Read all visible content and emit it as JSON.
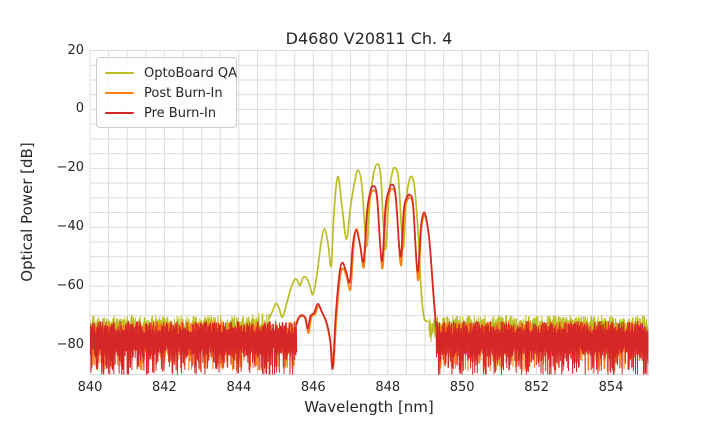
{
  "chart_data": {
    "type": "line",
    "title": "D4680 V20811 Ch. 4",
    "xlabel": "Wavelength [nm]",
    "ylabel": "Optical Power [dB]",
    "xlim": [
      840,
      855
    ],
    "ylim": [
      -90,
      20
    ],
    "xticks": {
      "values": [
        840,
        842,
        844,
        846,
        848,
        850,
        852,
        854
      ],
      "labels": [
        "840",
        "842",
        "844",
        "846",
        "848",
        "850",
        "852",
        "854"
      ]
    },
    "yticks": {
      "values": [
        20,
        0,
        -20,
        -40,
        -60,
        -80
      ],
      "labels": [
        "20",
        "0",
        "−20",
        "−40",
        "−60",
        "−80"
      ]
    },
    "grid": {
      "show": true,
      "x_step": 0.5,
      "y_step": 5,
      "color": "#dcdcdc"
    },
    "legend": {
      "position": "upper left"
    },
    "series": [
      {
        "name": "OptoBoard QA",
        "color": "#bcbd22",
        "noise_floor_dB": -74,
        "noise_segments": [
          {
            "x0": 840.0,
            "x1": 844.82,
            "hi": -72.0,
            "hiJit": 2.2,
            "lo": -76.5,
            "loJit": 3.5,
            "deepProb": 0.25,
            "ramp": [
              844.2,
              2.0
            ]
          },
          {
            "x0": 849.1,
            "x1": 855.0,
            "hi": -72.0,
            "hiJit": 2.2,
            "lo": -76.5,
            "loJit": 3.5,
            "deepProb": 0.25,
            "ramp": null
          }
        ],
        "envelope": [
          [
            844.82,
            -71
          ],
          [
            844.92,
            -68
          ],
          [
            845.0,
            -65.8
          ],
          [
            845.08,
            -67.5
          ],
          [
            845.17,
            -70.5
          ],
          [
            845.28,
            -66
          ],
          [
            845.38,
            -61.5
          ],
          [
            845.48,
            -58
          ],
          [
            845.56,
            -57.8
          ],
          [
            845.64,
            -59.8
          ],
          [
            845.72,
            -57.2
          ],
          [
            845.8,
            -57
          ],
          [
            845.9,
            -59.5
          ],
          [
            845.99,
            -62.8
          ],
          [
            846.1,
            -56
          ],
          [
            846.2,
            -46
          ],
          [
            846.3,
            -40.5
          ],
          [
            846.4,
            -46
          ],
          [
            846.48,
            -53
          ],
          [
            846.56,
            -34
          ],
          [
            846.66,
            -22.8
          ],
          [
            846.77,
            -33
          ],
          [
            846.89,
            -44
          ],
          [
            846.99,
            -34
          ],
          [
            847.09,
            -26
          ],
          [
            847.2,
            -20.6
          ],
          [
            847.31,
            -26.5
          ],
          [
            847.43,
            -46.5
          ],
          [
            847.53,
            -29.5
          ],
          [
            847.62,
            -22
          ],
          [
            847.71,
            -18.6
          ],
          [
            847.81,
            -22.5
          ],
          [
            847.93,
            -47.5
          ],
          [
            848.03,
            -29.5
          ],
          [
            848.11,
            -22
          ],
          [
            848.19,
            -19.8
          ],
          [
            848.29,
            -24
          ],
          [
            848.41,
            -47
          ],
          [
            848.49,
            -31.5
          ],
          [
            848.57,
            -24.5
          ],
          [
            848.64,
            -22.8
          ],
          [
            848.72,
            -26.5
          ],
          [
            848.82,
            -43
          ],
          [
            848.9,
            -62
          ],
          [
            848.97,
            -70.5
          ],
          [
            849.04,
            -71.8
          ],
          [
            849.1,
            -72
          ]
        ]
      },
      {
        "name": "Post Burn-In",
        "color": "#ff7f0e",
        "noise_floor_dB": -76,
        "noise_segments": [
          {
            "x0": 840.0,
            "x1": 845.5,
            "hi": -74.5,
            "hiJit": 2.5,
            "lo": -81.0,
            "loJit": 8.0,
            "deepProb": 0.5,
            "ramp": null
          },
          {
            "x0": 849.32,
            "x1": 855.0,
            "hi": -74.5,
            "hiJit": 2.5,
            "lo": -81.0,
            "loJit": 8.0,
            "deepProb": 0.5,
            "ramp": null
          }
        ],
        "envelope": [
          [
            845.5,
            -73.5
          ],
          [
            845.6,
            -70.8
          ],
          [
            845.7,
            -70.2
          ],
          [
            845.8,
            -71
          ],
          [
            845.87,
            -76
          ],
          [
            845.95,
            -70.5
          ],
          [
            846.05,
            -69.5
          ],
          [
            846.14,
            -66.5
          ],
          [
            846.24,
            -69
          ],
          [
            846.36,
            -73
          ],
          [
            846.47,
            -80
          ],
          [
            846.54,
            -87
          ],
          [
            846.62,
            -71
          ],
          [
            846.72,
            -57
          ],
          [
            846.8,
            -54
          ],
          [
            846.9,
            -57
          ],
          [
            847.0,
            -61
          ],
          [
            847.08,
            -47
          ],
          [
            847.16,
            -40.5
          ],
          [
            847.26,
            -46.5
          ],
          [
            847.36,
            -53.5
          ],
          [
            847.45,
            -36
          ],
          [
            847.53,
            -29.5
          ],
          [
            847.62,
            -27.5
          ],
          [
            847.72,
            -31
          ],
          [
            847.85,
            -54
          ],
          [
            847.95,
            -34.5
          ],
          [
            848.04,
            -28.5
          ],
          [
            848.12,
            -27
          ],
          [
            848.22,
            -30.5
          ],
          [
            848.35,
            -53
          ],
          [
            848.44,
            -35.5
          ],
          [
            848.52,
            -31
          ],
          [
            848.6,
            -30
          ],
          [
            848.69,
            -34
          ],
          [
            848.81,
            -58
          ],
          [
            848.9,
            -41
          ],
          [
            848.98,
            -36
          ],
          [
            849.06,
            -39
          ],
          [
            849.14,
            -47.5
          ],
          [
            849.24,
            -64
          ],
          [
            849.32,
            -76
          ]
        ]
      },
      {
        "name": "Pre Burn-In",
        "color": "#d62728",
        "noise_floor_dB": -76,
        "noise_segments": [
          {
            "x0": 840.0,
            "x1": 845.55,
            "hi": -74.0,
            "hiJit": 2.2,
            "lo": -82.0,
            "loJit": 9.0,
            "deepProb": 0.6,
            "ramp": null
          },
          {
            "x0": 849.3,
            "x1": 855.0,
            "hi": -74.0,
            "hiJit": 2.2,
            "lo": -82.0,
            "loJit": 9.0,
            "deepProb": 0.6,
            "ramp": null
          }
        ],
        "envelope": [
          [
            845.55,
            -73
          ],
          [
            845.62,
            -70.5
          ],
          [
            845.7,
            -69.8
          ],
          [
            845.78,
            -70.8
          ],
          [
            845.85,
            -74.5
          ],
          [
            845.92,
            -70.2
          ],
          [
            846.02,
            -69
          ],
          [
            846.12,
            -66
          ],
          [
            846.22,
            -68.5
          ],
          [
            846.35,
            -72
          ],
          [
            846.45,
            -78
          ],
          [
            846.52,
            -88
          ],
          [
            846.6,
            -70
          ],
          [
            846.7,
            -56
          ],
          [
            846.78,
            -52
          ],
          [
            846.88,
            -55
          ],
          [
            846.98,
            -58.5
          ],
          [
            847.06,
            -46
          ],
          [
            847.15,
            -41
          ],
          [
            847.25,
            -45.5
          ],
          [
            847.35,
            -51.5
          ],
          [
            847.44,
            -35
          ],
          [
            847.52,
            -28.5
          ],
          [
            847.61,
            -26
          ],
          [
            847.71,
            -29.5
          ],
          [
            847.84,
            -51.5
          ],
          [
            847.94,
            -33
          ],
          [
            848.03,
            -27.5
          ],
          [
            848.11,
            -25.5
          ],
          [
            848.21,
            -29
          ],
          [
            848.34,
            -50
          ],
          [
            848.43,
            -34
          ],
          [
            848.51,
            -30
          ],
          [
            848.59,
            -29
          ],
          [
            848.68,
            -32.5
          ],
          [
            848.8,
            -55
          ],
          [
            848.89,
            -40
          ],
          [
            848.97,
            -35
          ],
          [
            849.05,
            -38
          ],
          [
            849.13,
            -46
          ],
          [
            849.22,
            -62
          ],
          [
            849.3,
            -74
          ]
        ]
      }
    ]
  }
}
